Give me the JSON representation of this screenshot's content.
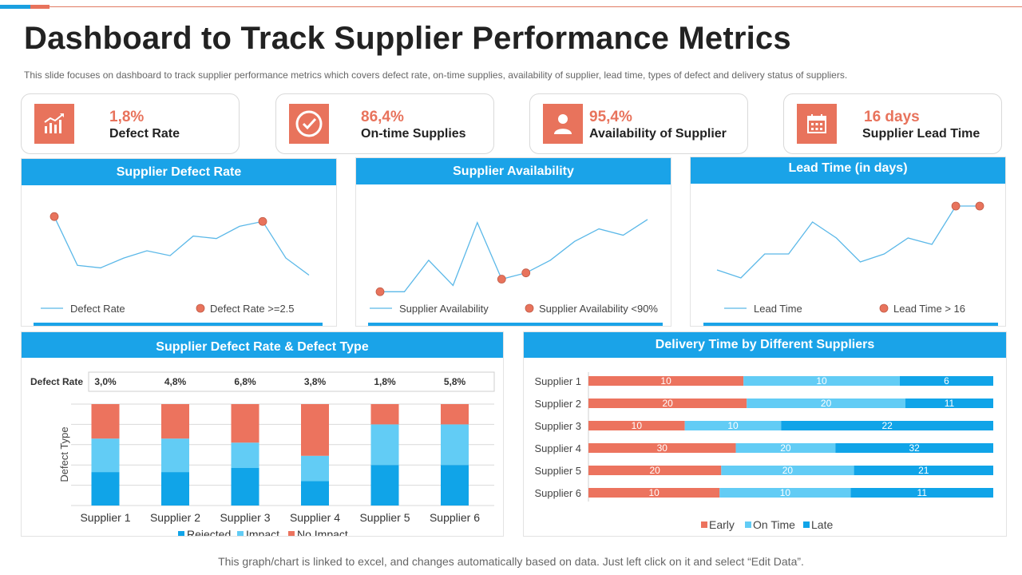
{
  "header": {
    "title": "Dashboard to Track Supplier Performance Metrics",
    "subtitle": "This slide focuses on dashboard  to track supplier performance  metrics which covers defect rate, on-time supplies, availability of supplier, lead time, types of defect and delivery  status of suppliers."
  },
  "kpis": [
    {
      "value": "1,8%",
      "label": "Defect Rate",
      "icon": "growth-chart-icon"
    },
    {
      "value": "86,4%",
      "label": "On-time  Supplies",
      "icon": "check-circle-icon"
    },
    {
      "value": "95,4%",
      "label": "Availability  of Supplier",
      "icon": "user-icon"
    },
    {
      "value": "16 days",
      "label": "Supplier Lead Time",
      "icon": "calendar-icon"
    }
  ],
  "colors": {
    "accent": "#e8735c",
    "header_blue": "#1aa3e8",
    "line_blue": "#5bb8e8",
    "rejected": "#10a4e8",
    "impact": "#62ccf5",
    "no_impact": "#ec735e",
    "early": "#ec735e",
    "on_time": "#62ccf5",
    "late": "#10a4e8"
  },
  "footnote": "This graph/chart is linked to excel,  and changes automatically based on data. Just left click on it and select “Edit Data”.",
  "chart_data": [
    {
      "type": "line",
      "title": "Supplier Defect Rate",
      "x": [
        1,
        2,
        3,
        4,
        5,
        6,
        7,
        8,
        9,
        10,
        11,
        12
      ],
      "series": [
        {
          "name": "Defect Rate",
          "values": [
            3.2,
            1.2,
            1.1,
            1.5,
            1.8,
            1.6,
            2.4,
            2.3,
            2.8,
            3.0,
            1.5,
            0.8
          ]
        }
      ],
      "highlight": {
        "name": "Defect Rate >=2.5",
        "points": [
          [
            1,
            3.2
          ],
          [
            10,
            3.0
          ]
        ]
      },
      "ylim": [
        0,
        3.5
      ],
      "legend": "bottom"
    },
    {
      "type": "line",
      "title": "Supplier Availability",
      "x": [
        1,
        2,
        3,
        4,
        5,
        6,
        7,
        8,
        9,
        10,
        11,
        12
      ],
      "series": [
        {
          "name": "Supplier Availability",
          "values": [
            88,
            88,
            93,
            89,
            99,
            90,
            91,
            93,
            96,
            98,
            97,
            99.5
          ]
        }
      ],
      "highlight": {
        "name": "Supplier Availability <90%",
        "points": [
          [
            1,
            88
          ],
          [
            6,
            90
          ],
          [
            7,
            91
          ]
        ]
      },
      "ylim": [
        86,
        101
      ],
      "legend": "bottom"
    },
    {
      "type": "line",
      "title": "Lead Time (in days)",
      "x": [
        1,
        2,
        3,
        4,
        5,
        6,
        7,
        8,
        9,
        10,
        11,
        12
      ],
      "series": [
        {
          "name": "Lead Time",
          "values": [
            13,
            12.5,
            14,
            14,
            16,
            15,
            13.5,
            14,
            15,
            14.6,
            17,
            17
          ]
        }
      ],
      "highlight": {
        "name": "Lead Time > 16",
        "points": [
          [
            11,
            17
          ],
          [
            12,
            17
          ]
        ]
      },
      "ylim": [
        10,
        18
      ],
      "legend": "bottom"
    },
    {
      "type": "bar",
      "stacked": true,
      "title": "Supplier Defect Rate & Defect Type",
      "ylabel": "Defect Type",
      "table_label": "Defect Rate",
      "defect_rates": [
        "3,0%",
        "4,8%",
        "6,8%",
        "3,8%",
        "1,8%",
        "5,8%"
      ],
      "categories": [
        "Supplier 1",
        "Supplier 2",
        "Supplier 3",
        "Supplier 4",
        "Supplier 5",
        "Supplier 6"
      ],
      "series": [
        {
          "name": "Rejected",
          "values": [
            33,
            33,
            37,
            24,
            40,
            40
          ]
        },
        {
          "name": "Impact",
          "values": [
            33,
            33,
            25,
            25,
            40,
            40
          ]
        },
        {
          "name": "No Impact",
          "values": [
            34,
            34,
            38,
            51,
            20,
            20
          ]
        }
      ],
      "ylim": [
        0,
        100
      ],
      "legend": "bottom"
    },
    {
      "type": "bar",
      "orientation": "horizontal",
      "stacked": true,
      "title": "Delivery Time by Different Suppliers",
      "categories": [
        "Supplier 1",
        "Supplier 2",
        "Supplier 3",
        "Supplier 4",
        "Supplier 5",
        "Supplier 6"
      ],
      "series": [
        {
          "name": "Early",
          "values": [
            10,
            20,
            10,
            30,
            20,
            10
          ],
          "shares": [
            0.383,
            0.391,
            0.238,
            0.364,
            0.328,
            0.324
          ]
        },
        {
          "name": "On Time",
          "values": [
            10,
            20,
            10,
            20,
            20,
            10
          ],
          "shares": [
            0.386,
            0.392,
            0.238,
            0.246,
            0.328,
            0.324
          ]
        },
        {
          "name": "Late",
          "values": [
            6,
            11,
            22,
            32,
            21,
            11
          ],
          "shares": [
            0.231,
            0.217,
            0.524,
            0.39,
            0.344,
            0.352
          ]
        }
      ],
      "legend": "bottom"
    }
  ]
}
